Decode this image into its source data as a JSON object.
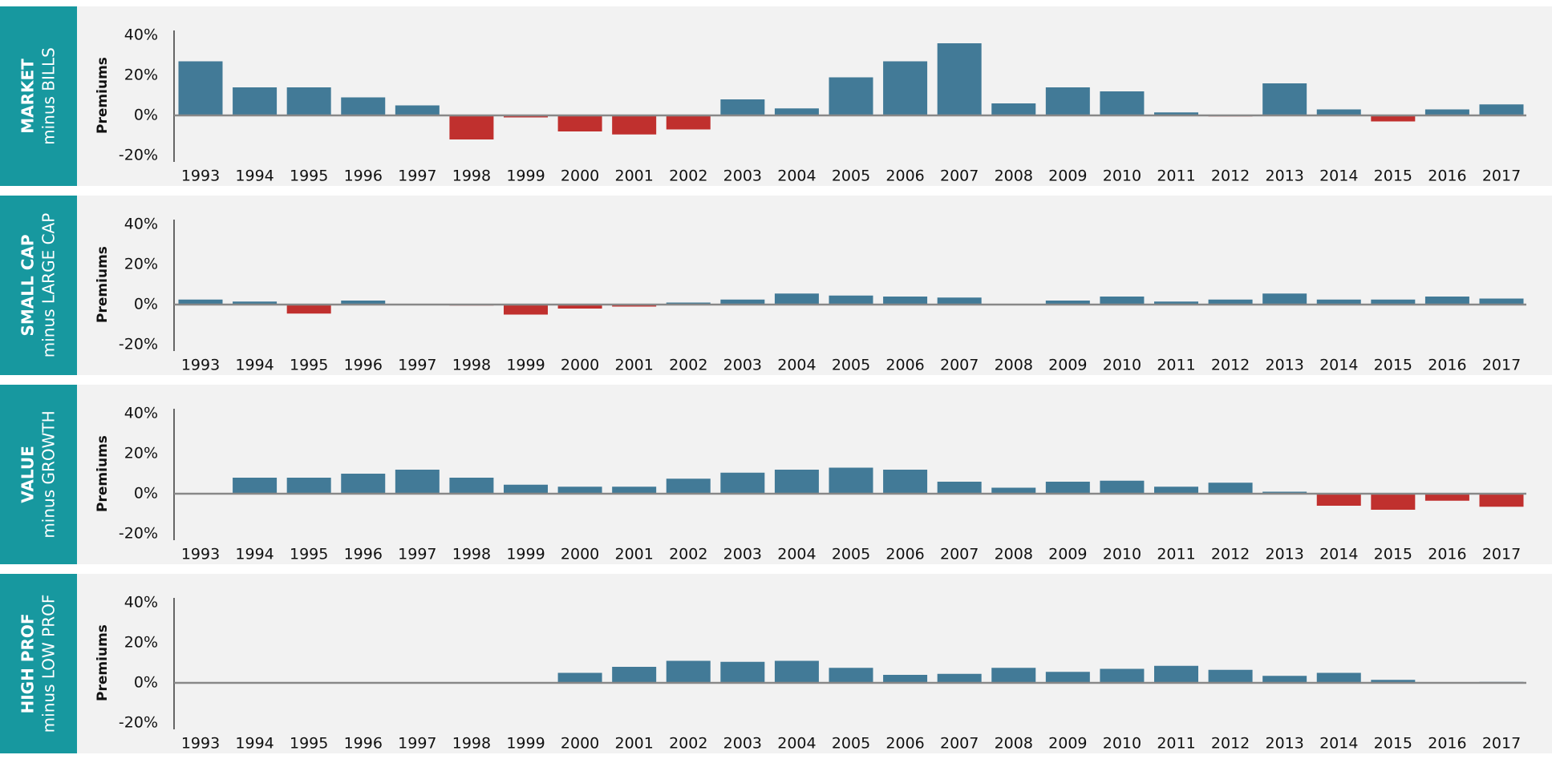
{
  "chart_data": [
    {
      "type": "bar",
      "title": [
        "MARKET",
        "minus BILLS"
      ],
      "y_label": "Premiums",
      "categories": [
        "1993",
        "1994",
        "1995",
        "1996",
        "1997",
        "1998",
        "1999",
        "2000",
        "2001",
        "2002",
        "2003",
        "2004",
        "2005",
        "2006",
        "2007",
        "2008",
        "2009",
        "2010",
        "2011",
        "2012",
        "2013",
        "2014",
        "2015",
        "2016",
        "2017"
      ],
      "values": [
        27,
        14,
        14,
        9,
        5,
        -12,
        -1,
        -8,
        -9.5,
        -7,
        8,
        3.5,
        19,
        27,
        36,
        6,
        14,
        12,
        1.5,
        -0.5,
        16,
        3,
        -3,
        3,
        5.5
      ],
      "color": "#427a97",
      "negative_color": "#c0302e",
      "ylim": [
        -20,
        40
      ],
      "yticks": [
        {
          "value": -20,
          "label": "-20%"
        },
        {
          "value": 0,
          "label": "0%"
        },
        {
          "value": 20,
          "label": "20%"
        },
        {
          "value": 40,
          "label": "40%"
        }
      ]
    },
    {
      "type": "bar",
      "title": [
        "SMALL CAP",
        "minus LARGE CAP"
      ],
      "y_label": "Premiums",
      "categories": [
        "1993",
        "1994",
        "1995",
        "1996",
        "1997",
        "1998",
        "1999",
        "2000",
        "2001",
        "2002",
        "2003",
        "2004",
        "2005",
        "2006",
        "2007",
        "2008",
        "2009",
        "2010",
        "2011",
        "2012",
        "2013",
        "2014",
        "2015",
        "2016",
        "2017"
      ],
      "values": [
        2.5,
        1.5,
        -4.5,
        2,
        0,
        -0.5,
        -5,
        -2,
        -1,
        1,
        2.5,
        5.5,
        4.5,
        4,
        3.5,
        0,
        2,
        4,
        1.5,
        2.5,
        5.5,
        2.5,
        2.5,
        4,
        3
      ],
      "color": "#427a97",
      "negative_color": "#c0302e",
      "ylim": [
        -20,
        40
      ],
      "yticks": [
        {
          "value": -20,
          "label": "-20%"
        },
        {
          "value": 0,
          "label": "0%"
        },
        {
          "value": 20,
          "label": "20%"
        },
        {
          "value": 40,
          "label": "40%"
        }
      ]
    },
    {
      "type": "bar",
      "title": [
        "VALUE",
        "minus GROWTH"
      ],
      "y_label": "Premiums",
      "categories": [
        "1993",
        "1994",
        "1995",
        "1996",
        "1997",
        "1998",
        "1999",
        "2000",
        "2001",
        "2002",
        "2003",
        "2004",
        "2005",
        "2006",
        "2007",
        "2008",
        "2009",
        "2010",
        "2011",
        "2012",
        "2013",
        "2014",
        "2015",
        "2016",
        "2017"
      ],
      "values": [
        0,
        8,
        8,
        10,
        12,
        8,
        4.5,
        3.5,
        3.5,
        7.5,
        10.5,
        12,
        13,
        12,
        6,
        3,
        6,
        6.5,
        3.5,
        5.5,
        1,
        -6,
        -8,
        -3.5,
        -6.5
      ],
      "color": "#427a97",
      "negative_color": "#c0302e",
      "ylim": [
        -20,
        40
      ],
      "yticks": [
        {
          "value": -20,
          "label": "-20%"
        },
        {
          "value": 0,
          "label": "0%"
        },
        {
          "value": 20,
          "label": "20%"
        },
        {
          "value": 40,
          "label": "40%"
        }
      ]
    },
    {
      "type": "bar",
      "title": [
        "HIGH PROF",
        "minus LOW PROF"
      ],
      "y_label": "Premiums",
      "categories": [
        "1993",
        "1994",
        "1995",
        "1996",
        "1997",
        "1998",
        "1999",
        "2000",
        "2001",
        "2002",
        "2003",
        "2004",
        "2005",
        "2006",
        "2007",
        "2008",
        "2009",
        "2010",
        "2011",
        "2012",
        "2013",
        "2014",
        "2015",
        "2016",
        "2017"
      ],
      "values": [
        null,
        null,
        null,
        null,
        null,
        null,
        null,
        5,
        8,
        11,
        10.5,
        11,
        7.5,
        4,
        4.5,
        7.5,
        5.5,
        7,
        8.5,
        6.5,
        3.5,
        5,
        1.5,
        0,
        0.5
      ],
      "color": "#427a97",
      "negative_color": "#c0302e",
      "ylim": [
        -20,
        40
      ],
      "yticks": [
        {
          "value": -20,
          "label": "-20%"
        },
        {
          "value": 0,
          "label": "0%"
        },
        {
          "value": 20,
          "label": "20%"
        },
        {
          "value": 40,
          "label": "40%"
        }
      ]
    }
  ]
}
